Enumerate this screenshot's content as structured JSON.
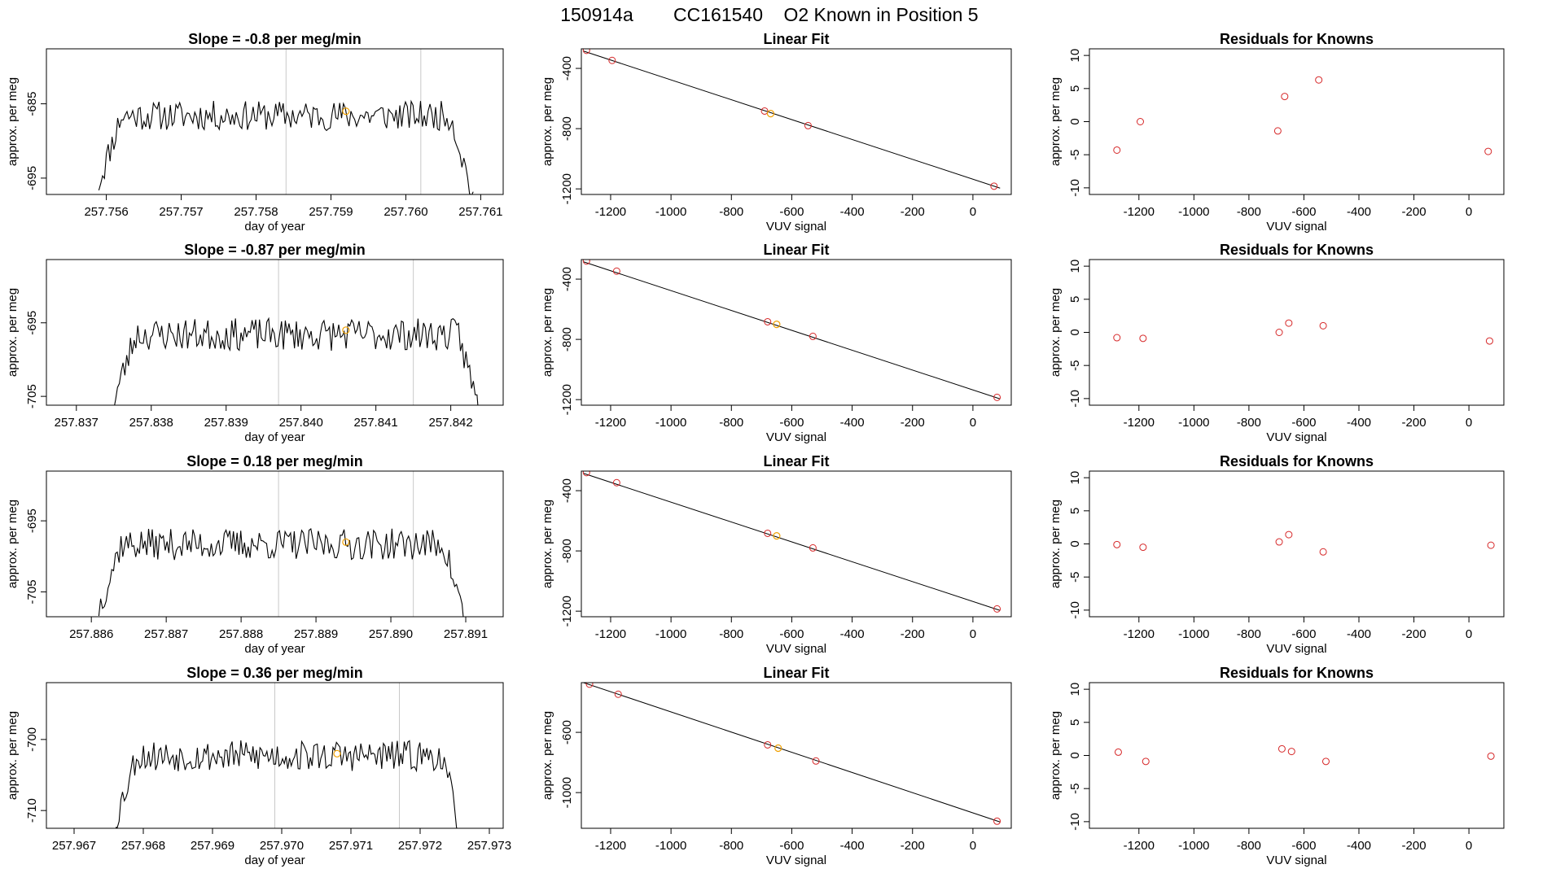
{
  "header": {
    "run_id": "150914a",
    "cylinder": "CC161540",
    "description": "O2 Known in Position  5"
  },
  "colors": {
    "trace": "#000000",
    "fit_line": "#000000",
    "points": "#d62728",
    "highlight": "#f0a000",
    "vline": "#c8c8c8"
  },
  "chart_data": [
    {
      "type": "line",
      "title": "Slope =  -0.8  per meg/min",
      "xlabel": "day of year",
      "ylabel": "approx. per meg",
      "xlim": [
        257.7552,
        257.7613
      ],
      "ylim": [
        -697.2,
        -677.6
      ],
      "xticks": [
        "257.756",
        "257.757",
        "257.758",
        "257.759",
        "257.760",
        "257.761"
      ],
      "yticks": [
        "-695",
        "-685"
      ],
      "vlines": [
        257.7584,
        257.7602
      ],
      "highlight_point": {
        "x": 257.7592,
        "y": -686.0
      },
      "trace": {
        "x_start": 257.7559,
        "x_end": 257.7609,
        "baseline": -686.6,
        "noise": 2.0,
        "ramp": 0.06,
        "seed": 11,
        "n": 200
      }
    },
    {
      "type": "scatter",
      "title": "Linear Fit",
      "xlabel": "VUV signal",
      "ylabel": "approx. per meg",
      "xlim": [
        -1297,
        127
      ],
      "ylim": [
        -1237,
        -270
      ],
      "xticks": [
        "-1200",
        "-1000",
        "-800",
        "-600",
        "-400",
        "-200",
        "0"
      ],
      "yticks": [
        "-400",
        "-800",
        "-1200"
      ],
      "points": [
        {
          "x": -1280,
          "y": -280
        },
        {
          "x": -1195,
          "y": -347
        },
        {
          "x": -690,
          "y": -683
        },
        {
          "x": -546,
          "y": -780
        },
        {
          "x": 70,
          "y": -1182
        }
      ],
      "highlight_point": {
        "x": -670,
        "y": -700
      },
      "fit_line": {
        "x": [
          -1290,
          90
        ],
        "y": [
          -285,
          -1195
        ]
      }
    },
    {
      "type": "scatter",
      "title": "Residuals for Knowns",
      "xlabel": "VUV signal",
      "ylabel": "approx. per meg",
      "xlim": [
        -1380,
        127
      ],
      "ylim": [
        -11,
        11
      ],
      "xticks": [
        "-1200",
        "-1000",
        "-800",
        "-600",
        "-400",
        "-200",
        "0"
      ],
      "yticks": [
        "10",
        "5",
        "0",
        "-5",
        "-10"
      ],
      "points": [
        {
          "x": -1280,
          "y": -4.3
        },
        {
          "x": -1195,
          "y": 0.0
        },
        {
          "x": -695,
          "y": -1.4
        },
        {
          "x": -670,
          "y": 3.8
        },
        {
          "x": -546,
          "y": 6.3
        },
        {
          "x": 70,
          "y": -4.5
        }
      ]
    },
    {
      "type": "line",
      "title": "Slope =  -0.87  per meg/min",
      "xlabel": "day of year",
      "ylabel": "approx. per meg",
      "xlim": [
        257.8366,
        257.8427
      ],
      "ylim": [
        -706.2,
        -686.4
      ],
      "xticks": [
        "257.837",
        "257.838",
        "257.839",
        "257.840",
        "257.841",
        "257.842"
      ],
      "yticks": [
        "-695",
        "-705"
      ],
      "vlines": [
        257.8397,
        257.8415
      ],
      "highlight_point": {
        "x": 257.8406,
        "y": -696.0
      },
      "trace": {
        "x_start": 257.8375,
        "x_end": 257.8424,
        "baseline": -696.6,
        "noise": 2.2,
        "ramp": 0.06,
        "seed": 23,
        "n": 200
      }
    },
    {
      "type": "scatter",
      "title": "Linear Fit",
      "xlabel": "VUV signal",
      "ylabel": "approx. per meg",
      "xlim": [
        -1297,
        127
      ],
      "ylim": [
        -1237,
        -270
      ],
      "xticks": [
        "-1200",
        "-1000",
        "-800",
        "-600",
        "-400",
        "-200",
        "0"
      ],
      "yticks": [
        "-400",
        "-800",
        "-1200"
      ],
      "points": [
        {
          "x": -1280,
          "y": -280
        },
        {
          "x": -1180,
          "y": -347
        },
        {
          "x": -680,
          "y": -683
        },
        {
          "x": -530,
          "y": -780
        },
        {
          "x": 80,
          "y": -1185
        }
      ],
      "highlight_point": {
        "x": -650,
        "y": -700
      },
      "fit_line": {
        "x": [
          -1290,
          90
        ],
        "y": [
          -285,
          -1195
        ]
      }
    },
    {
      "type": "scatter",
      "title": "Residuals for Knowns",
      "xlabel": "VUV signal",
      "ylabel": "approx. per meg",
      "xlim": [
        -1380,
        127
      ],
      "ylim": [
        -11,
        11
      ],
      "xticks": [
        "-1200",
        "-1000",
        "-800",
        "-600",
        "-400",
        "-200",
        "0"
      ],
      "yticks": [
        "10",
        "5",
        "0",
        "-5",
        "-10"
      ],
      "points": [
        {
          "x": -1280,
          "y": -0.8
        },
        {
          "x": -1185,
          "y": -0.9
        },
        {
          "x": -690,
          "y": 0.0
        },
        {
          "x": -655,
          "y": 1.4
        },
        {
          "x": -530,
          "y": 1.0
        },
        {
          "x": 75,
          "y": -1.3
        }
      ]
    },
    {
      "type": "line",
      "title": "Slope =  0.18  per meg/min",
      "xlabel": "day of year",
      "ylabel": "approx. per meg",
      "xlim": [
        257.8854,
        257.8915
      ],
      "ylim": [
        -708.5,
        -688.0
      ],
      "xticks": [
        "257.886",
        "257.887",
        "257.888",
        "257.889",
        "257.890",
        "257.891"
      ],
      "yticks": [
        "-695",
        "-705"
      ],
      "vlines": [
        257.8885,
        257.8903
      ],
      "highlight_point": {
        "x": 257.8894,
        "y": -698.0
      },
      "trace": {
        "x_start": 257.8861,
        "x_end": 257.891,
        "baseline": -698.3,
        "noise": 2.2,
        "ramp": 0.06,
        "seed": 37,
        "n": 200
      }
    },
    {
      "type": "scatter",
      "title": "Linear Fit",
      "xlabel": "VUV signal",
      "ylabel": "approx. per meg",
      "xlim": [
        -1297,
        127
      ],
      "ylim": [
        -1237,
        -270
      ],
      "xticks": [
        "-1200",
        "-1000",
        "-800",
        "-600",
        "-400",
        "-200",
        "0"
      ],
      "yticks": [
        "-400",
        "-800",
        "-1200"
      ],
      "points": [
        {
          "x": -1280,
          "y": -280
        },
        {
          "x": -1180,
          "y": -347
        },
        {
          "x": -680,
          "y": -683
        },
        {
          "x": -530,
          "y": -780
        },
        {
          "x": 80,
          "y": -1185
        }
      ],
      "highlight_point": {
        "x": -650,
        "y": -700
      },
      "fit_line": {
        "x": [
          -1290,
          90
        ],
        "y": [
          -285,
          -1195
        ]
      }
    },
    {
      "type": "scatter",
      "title": "Residuals for Knowns",
      "xlabel": "VUV signal",
      "ylabel": "approx. per meg",
      "xlim": [
        -1380,
        127
      ],
      "ylim": [
        -11,
        11
      ],
      "xticks": [
        "-1200",
        "-1000",
        "-800",
        "-600",
        "-400",
        "-200",
        "0"
      ],
      "yticks": [
        "10",
        "5",
        "0",
        "-5",
        "-10"
      ],
      "points": [
        {
          "x": -1280,
          "y": -0.1
        },
        {
          "x": -1185,
          "y": -0.5
        },
        {
          "x": -690,
          "y": 0.3
        },
        {
          "x": -655,
          "y": 1.4
        },
        {
          "x": -530,
          "y": -1.2
        },
        {
          "x": 80,
          "y": -0.2
        }
      ]
    },
    {
      "type": "line",
      "title": "Slope =  0.36  per meg/min",
      "xlabel": "day of year",
      "ylabel": "approx. per meg",
      "xlim": [
        257.9666,
        257.9732
      ],
      "ylim": [
        -712.5,
        -692.0
      ],
      "xticks": [
        "257.967",
        "257.968",
        "257.969",
        "257.970",
        "257.971",
        "257.972",
        "257.973"
      ],
      "yticks": [
        "-700",
        "-710"
      ],
      "vlines": [
        257.9699,
        257.9717
      ],
      "highlight_point": {
        "x": 257.9708,
        "y": -702.0
      },
      "trace": {
        "x_start": 257.9676,
        "x_end": 257.9726,
        "baseline": -702.3,
        "noise": 2.2,
        "ramp": 0.06,
        "seed": 53,
        "n": 200
      }
    },
    {
      "type": "scatter",
      "title": "Linear Fit",
      "xlabel": "VUV signal",
      "ylabel": "approx. per meg",
      "xlim": [
        -1297,
        127
      ],
      "ylim": [
        -1237,
        -270
      ],
      "xticks": [
        "-1200",
        "-1000",
        "-800",
        "-600",
        "-400",
        "-200",
        "0"
      ],
      "yticks": [
        "-600",
        "-1000"
      ],
      "points": [
        {
          "x": -1270,
          "y": -280
        },
        {
          "x": -1175,
          "y": -347
        },
        {
          "x": -680,
          "y": -683
        },
        {
          "x": -520,
          "y": -790
        },
        {
          "x": 80,
          "y": -1190
        }
      ],
      "highlight_point": {
        "x": -645,
        "y": -705
      },
      "fit_line": {
        "x": [
          -1290,
          90
        ],
        "y": [
          -270,
          -1195
        ]
      }
    },
    {
      "type": "scatter",
      "title": "Residuals for Knowns",
      "xlabel": "VUV signal",
      "ylabel": "approx. per meg",
      "xlim": [
        -1380,
        127
      ],
      "ylim": [
        -11,
        11
      ],
      "xticks": [
        "-1200",
        "-1000",
        "-800",
        "-600",
        "-400",
        "-200",
        "0"
      ],
      "yticks": [
        "10",
        "5",
        "0",
        "-5",
        "-10"
      ],
      "points": [
        {
          "x": -1275,
          "y": 0.5
        },
        {
          "x": -1175,
          "y": -0.9
        },
        {
          "x": -680,
          "y": 1.0
        },
        {
          "x": -645,
          "y": 0.6
        },
        {
          "x": -520,
          "y": -0.9
        },
        {
          "x": 80,
          "y": -0.1
        }
      ]
    }
  ]
}
